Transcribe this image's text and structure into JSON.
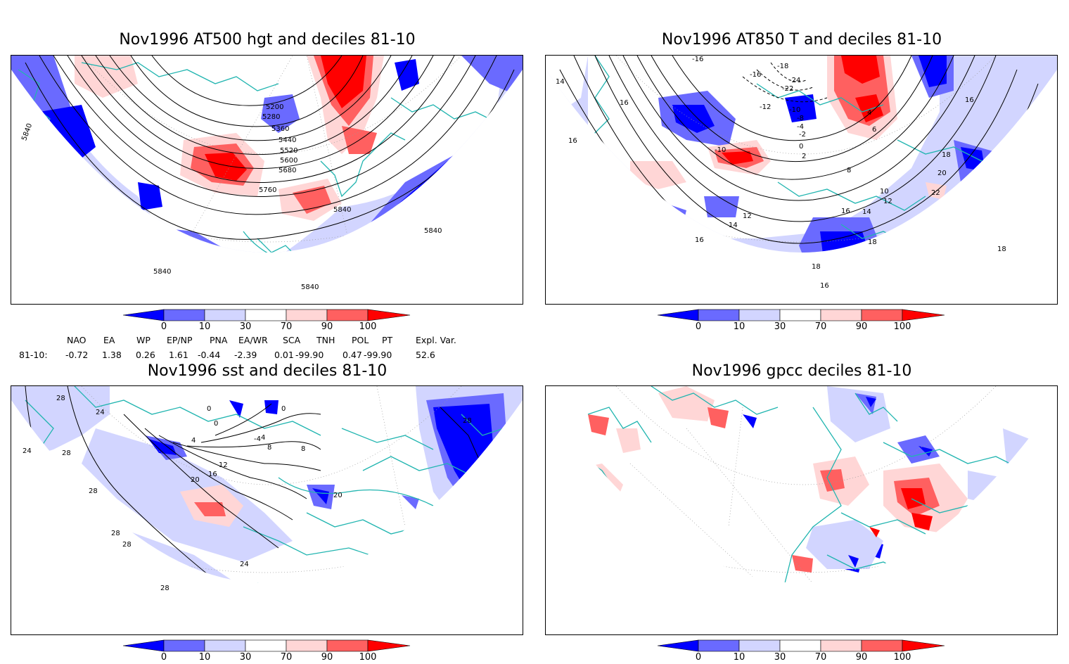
{
  "colors": {
    "blue_dark": "#0000ff",
    "blue_mid": "#6a6aff",
    "blue_light": "#d2d5ff",
    "red_light": "#ffd6d6",
    "red_mid": "#ff6060",
    "red_dark": "#ff0000",
    "coast": "#21b5b0"
  },
  "colorbar": {
    "labels": [
      "0",
      "10",
      "30",
      "70",
      "90",
      "100"
    ]
  },
  "panels": [
    {
      "title": "Nov1996 AT500 hgt and deciles 81-10",
      "contour_labels": [
        "5200",
        "5280",
        "5360",
        "5440",
        "5520",
        "5600",
        "5680",
        "5760",
        "5840",
        "5840",
        "5840",
        "5840",
        "5840"
      ]
    },
    {
      "title": "Nov1996 AT850 T and deciles 81-10",
      "contour_labels": [
        "-16",
        "-18",
        "-16",
        "-24",
        "-22",
        "-12",
        "-10",
        "-8",
        "-4",
        "-2",
        "14",
        "16",
        "16",
        "-10",
        "0",
        "2",
        "4",
        "6",
        "8",
        "10",
        "12",
        "12",
        "14",
        "14",
        "16",
        "16",
        "16",
        "18",
        "18",
        "18",
        "18",
        "20",
        "22",
        "16"
      ]
    },
    {
      "title": "Nov1996 sst and deciles 81-10",
      "contour_labels": [
        "28",
        "24",
        "24",
        "28",
        "28",
        "28",
        "0",
        "0",
        "0",
        "4",
        "4",
        "8",
        "8",
        "12",
        "16",
        "20",
        "20",
        "-4",
        "28",
        "24",
        "28",
        "28"
      ]
    },
    {
      "title": "Nov1996 gpcc deciles 81-10",
      "contour_labels": []
    }
  ],
  "indices": {
    "headers": [
      "NAO",
      "EA",
      "WP",
      "EP/NP",
      "PNA",
      "EA/WR",
      "SCA",
      "TNH",
      "POL",
      "PT",
      "Expl. Var."
    ],
    "row_label": "81-10:",
    "values": [
      "-0.72",
      "1.38",
      "0.26",
      "1.61",
      "-0.44",
      "-2.39",
      "0.01",
      "-99.90",
      "0.47",
      "-99.90",
      "52.6"
    ]
  }
}
